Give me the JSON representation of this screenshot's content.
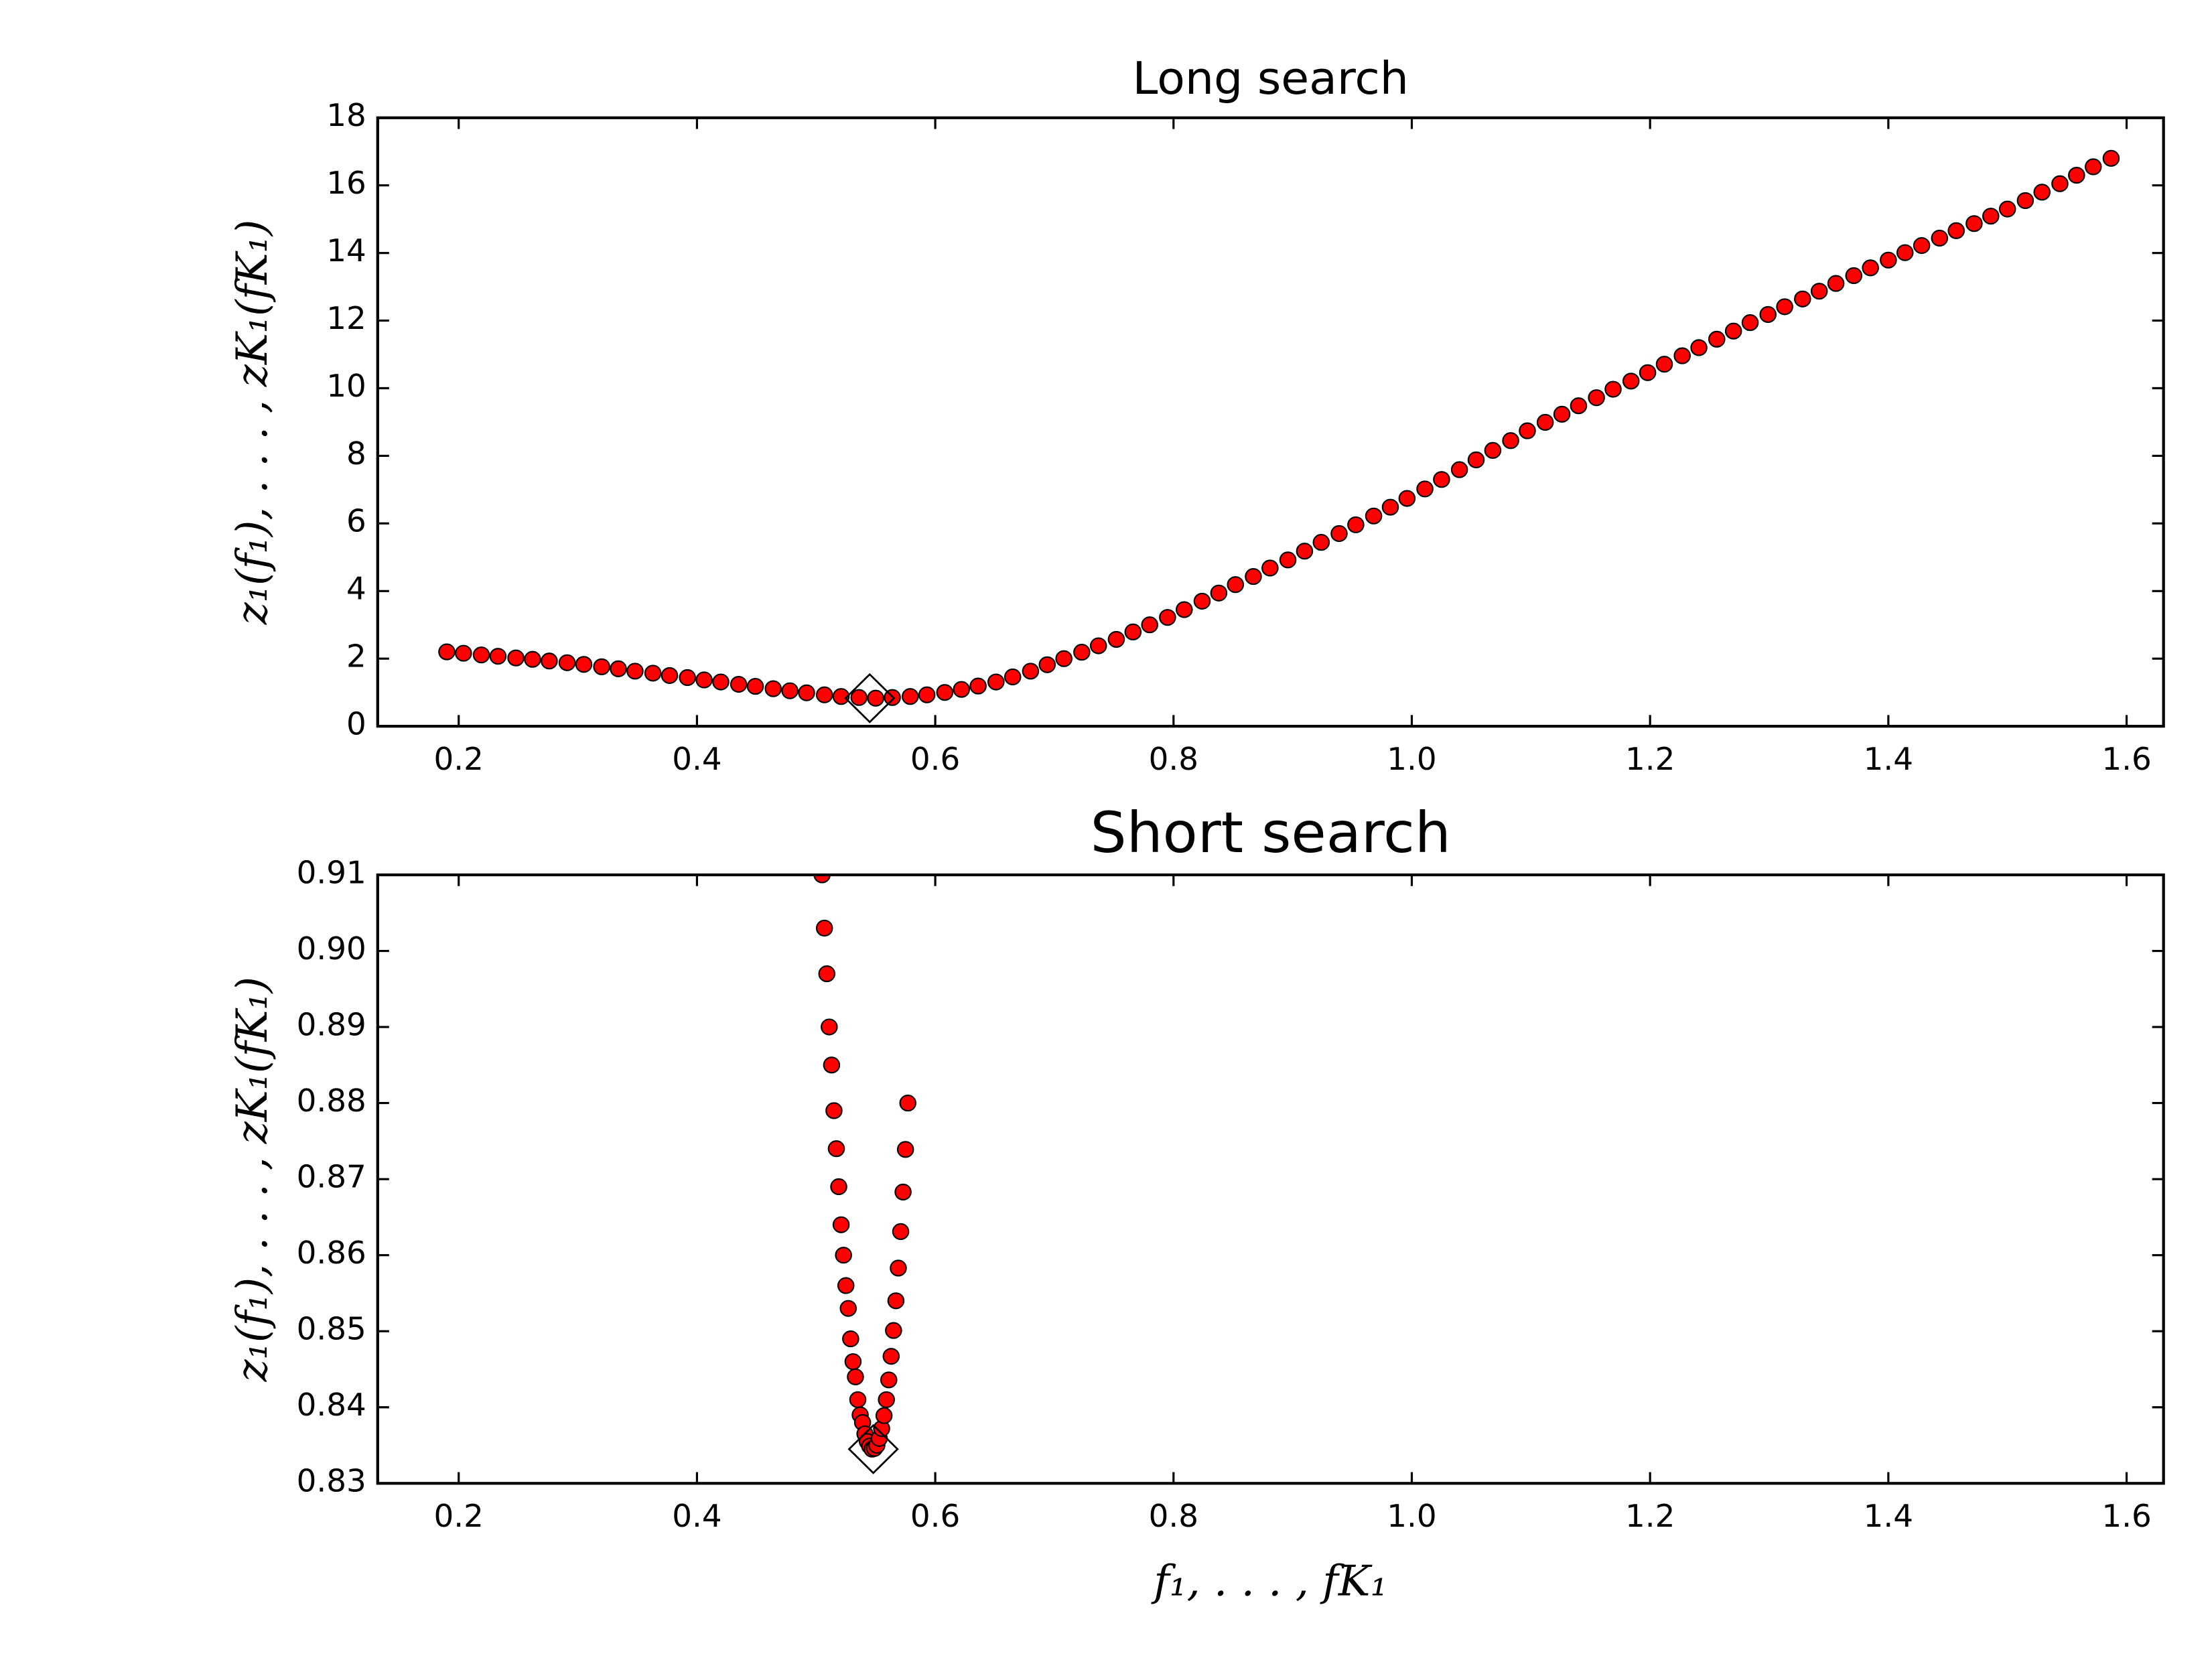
{
  "chart_data": [
    {
      "type": "scatter",
      "title": "Long search",
      "ylabel": "z₁(f₁), . . . , zK₁(fK₁)",
      "color": "#ff0000",
      "x": [
        0.19,
        0.204,
        0.219,
        0.233,
        0.248,
        0.262,
        0.276,
        0.291,
        0.305,
        0.32,
        0.334,
        0.348,
        0.363,
        0.377,
        0.392,
        0.406,
        0.42,
        0.435,
        0.449,
        0.464,
        0.478,
        0.492,
        0.507,
        0.521,
        0.536,
        0.55,
        0.564,
        0.579,
        0.593,
        0.608,
        0.622,
        0.636,
        0.651,
        0.665,
        0.68,
        0.694,
        0.708,
        0.723,
        0.737,
        0.752,
        0.766,
        0.78,
        0.795,
        0.809,
        0.824,
        0.838,
        0.852,
        0.867,
        0.881,
        0.896,
        0.91,
        0.924,
        0.939,
        0.953,
        0.968,
        0.982,
        0.996,
        1.011,
        1.025,
        1.04,
        1.054,
        1.068,
        1.083,
        1.097,
        1.112,
        1.126,
        1.14,
        1.155,
        1.169,
        1.184,
        1.198,
        1.212,
        1.227,
        1.241,
        1.256,
        1.27,
        1.284,
        1.299,
        1.313,
        1.328,
        1.342,
        1.356,
        1.371,
        1.385,
        1.4,
        1.414,
        1.428,
        1.443,
        1.457,
        1.472,
        1.486,
        1.5,
        1.515,
        1.529,
        1.544,
        1.558,
        1.572,
        1.587
      ],
      "values": [
        2.2,
        2.16,
        2.11,
        2.07,
        2.02,
        1.98,
        1.93,
        1.88,
        1.83,
        1.76,
        1.7,
        1.63,
        1.57,
        1.5,
        1.44,
        1.37,
        1.31,
        1.24,
        1.18,
        1.11,
        1.05,
        0.99,
        0.93,
        0.88,
        0.85,
        0.83,
        0.85,
        0.88,
        0.93,
        1.0,
        1.09,
        1.19,
        1.31,
        1.46,
        1.63,
        1.82,
        2.0,
        2.19,
        2.38,
        2.57,
        2.79,
        3.0,
        3.22,
        3.45,
        3.7,
        3.94,
        4.19,
        4.43,
        4.68,
        4.92,
        5.18,
        5.44,
        5.7,
        5.96,
        6.22,
        6.48,
        6.74,
        7.02,
        7.3,
        7.59,
        7.88,
        8.16,
        8.45,
        8.74,
        8.99,
        9.23,
        9.48,
        9.72,
        9.97,
        10.21,
        10.46,
        10.71,
        10.96,
        11.2,
        11.45,
        11.69,
        11.94,
        12.18,
        12.41,
        12.64,
        12.87,
        13.1,
        13.33,
        13.56,
        13.79,
        14.01,
        14.22,
        14.44,
        14.66,
        14.87,
        15.09,
        15.3,
        15.55,
        15.8,
        16.05,
        16.3,
        16.55,
        16.8
      ],
      "min_point": {
        "x": 0.545,
        "y": 0.83
      },
      "xlim": [
        0.132,
        1.631
      ],
      "ylim": [
        0,
        18
      ],
      "xticks": [
        0.2,
        0.4,
        0.6,
        0.8,
        {
          "value": 1,
          "label": "1.0"
        },
        1.2,
        1.4,
        1.6
      ],
      "yticks": [
        0,
        2,
        4,
        6,
        8,
        10,
        12,
        14,
        16,
        18
      ]
    },
    {
      "type": "scatter",
      "title": "Short search",
      "xlabel": "f₁, . . . , fK₁",
      "ylabel": "z₁(f₁), . . . , zK₁(fK₁)",
      "color": "#ff0000",
      "x": [
        0.505,
        0.507,
        0.509,
        0.511,
        0.513,
        0.515,
        0.517,
        0.519,
        0.521,
        0.523,
        0.525,
        0.527,
        0.529,
        0.531,
        0.533,
        0.535,
        0.537,
        0.539,
        0.541,
        0.543,
        0.545,
        0.547,
        0.549,
        0.551,
        0.553,
        0.555,
        0.557,
        0.559,
        0.561,
        0.563,
        0.565,
        0.567,
        0.569,
        0.571,
        0.573,
        0.575,
        0.577
      ],
      "values": [
        0.91,
        0.903,
        0.897,
        0.89,
        0.885,
        0.879,
        0.874,
        0.869,
        0.864,
        0.86,
        0.856,
        0.853,
        0.849,
        0.846,
        0.844,
        0.841,
        0.839,
        0.838,
        0.8365,
        0.8355,
        0.8349,
        0.8345,
        0.8346,
        0.835,
        0.8359,
        0.8372,
        0.8389,
        0.841,
        0.8436,
        0.8467,
        0.8501,
        0.854,
        0.8583,
        0.8631,
        0.8683,
        0.8739,
        0.88
      ],
      "min_point": {
        "x": 0.548,
        "y": 0.8345
      },
      "xlim": [
        0.132,
        1.631
      ],
      "ylim": [
        0.83,
        0.91
      ],
      "xticks": [
        0.2,
        0.4,
        0.6,
        0.8,
        {
          "value": 1,
          "label": "1.0"
        },
        1.2,
        1.4,
        1.6
      ],
      "yticks": [
        0.83,
        0.84,
        0.85,
        0.86,
        0.87,
        0.88,
        0.89,
        {
          "value": 0.9,
          "label": "0.90"
        },
        0.91
      ]
    }
  ]
}
